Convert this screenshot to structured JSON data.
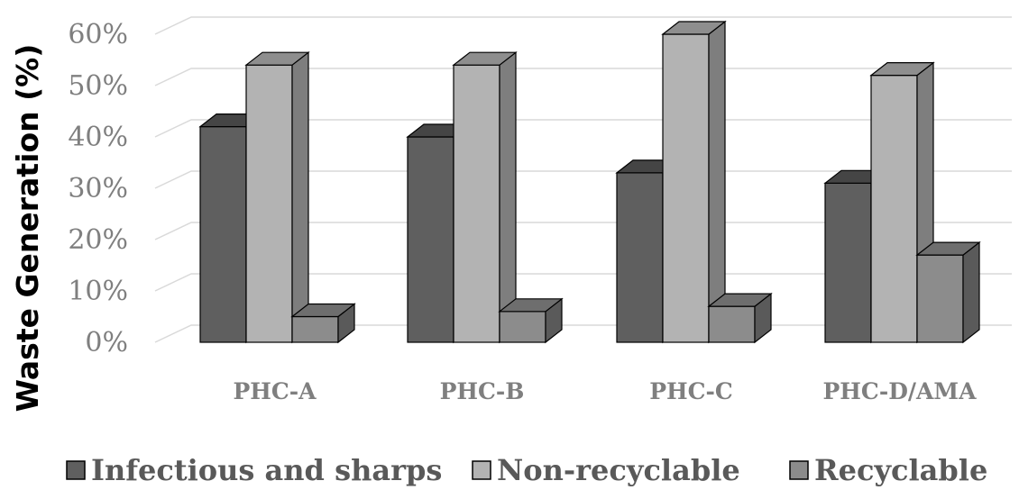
{
  "chart_data": {
    "type": "bar",
    "three_d": true,
    "categories": [
      "PHC-A",
      "PHC-B",
      "PHC-C",
      "PHC-D/AMA"
    ],
    "series": [
      {
        "name": "Infectious and sharps",
        "values": [
          42,
          40,
          33,
          31
        ],
        "color": "#5f5f5f",
        "top_color": "#454545",
        "side_color": "#3c3c3c"
      },
      {
        "name": "Non-recyclable",
        "values": [
          54,
          54,
          60,
          52
        ],
        "color": "#b3b3b3",
        "top_color": "#8e8e8e",
        "side_color": "#7e7e7e"
      },
      {
        "name": "Recyclable",
        "values": [
          5,
          6,
          7,
          17
        ],
        "color": "#8c8c8c",
        "top_color": "#6e6e6e",
        "side_color": "#5a5a5a"
      }
    ],
    "y_ticks": [
      "0%",
      "10%",
      "20%",
      "30%",
      "40%",
      "50%",
      "60%"
    ],
    "ylim": [
      0,
      60
    ],
    "ylabel": "Waste Generation (%)",
    "xlabel": "",
    "title": "",
    "grid": true,
    "legend_position": "bottom"
  }
}
